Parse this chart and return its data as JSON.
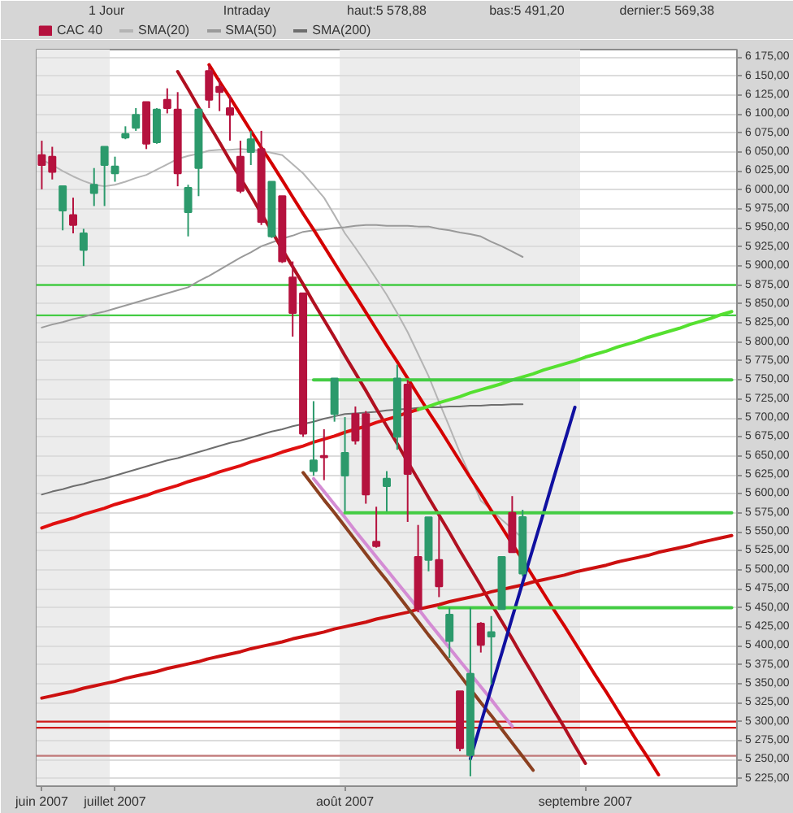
{
  "chart_data": {
    "type": "candlestick",
    "annotations": [
      "1 Jour",
      "Intraday",
      "haut:5 578,88",
      "bas:5 491,20",
      "dernier:5 569,38"
    ],
    "categories": [
      "juin 2007",
      null,
      null,
      null,
      null,
      null,
      null,
      "juillet 2007",
      null,
      null,
      null,
      null,
      null,
      null,
      null,
      null,
      null,
      null,
      null,
      null,
      null,
      null,
      null,
      null,
      null,
      null,
      null,
      null,
      null,
      "août 2007",
      null,
      null,
      null,
      null,
      null,
      null,
      null,
      null,
      null,
      null,
      null,
      null,
      null,
      null,
      null,
      null,
      null,
      null,
      null,
      null,
      null,
      null,
      "septembre 2007",
      null,
      null,
      null,
      null,
      null,
      null,
      null,
      null,
      null,
      null,
      null,
      null,
      null,
      null
    ],
    "ylim": [
      5215,
      6185
    ],
    "yticks": [
      {
        "value": 5225,
        "label": "5 225,00"
      },
      {
        "value": 5250,
        "label": "5 250,00"
      },
      {
        "value": 5275,
        "label": "5 275,00"
      },
      {
        "value": 5300,
        "label": "5 300,00"
      },
      {
        "value": 5325,
        "label": "5 325,00"
      },
      {
        "value": 5350,
        "label": "5 350,00"
      },
      {
        "value": 5375,
        "label": "5 375,00"
      },
      {
        "value": 5400,
        "label": "5 400,00"
      },
      {
        "value": 5425,
        "label": "5 425,00"
      },
      {
        "value": 5450,
        "label": "5 450,00"
      },
      {
        "value": 5475,
        "label": "5 475,00"
      },
      {
        "value": 5500,
        "label": "5 500,00"
      },
      {
        "value": 5525,
        "label": "5 525,00"
      },
      {
        "value": 5550,
        "label": "5 550,00"
      },
      {
        "value": 5575,
        "label": "5 575,00"
      },
      {
        "value": 5600,
        "label": "5 600,00"
      },
      {
        "value": 5625,
        "label": "5 625,00"
      },
      {
        "value": 5650,
        "label": "5 650,00"
      },
      {
        "value": 5675,
        "label": "5 675,00"
      },
      {
        "value": 5700,
        "label": "5 700,00"
      },
      {
        "value": 5725,
        "label": "5 725,00"
      },
      {
        "value": 5750,
        "label": "5 750,00"
      },
      {
        "value": 5775,
        "label": "5 775,00"
      },
      {
        "value": 5800,
        "label": "5 800,00"
      },
      {
        "value": 5825,
        "label": "5 825,00"
      },
      {
        "value": 5850,
        "label": "5 850,00"
      },
      {
        "value": 5875,
        "label": "5 875,00"
      },
      {
        "value": 5900,
        "label": "5 900,00"
      },
      {
        "value": 5925,
        "label": "5 925,00"
      },
      {
        "value": 5950,
        "label": "5 950,00"
      },
      {
        "value": 5975,
        "label": "5 975,00"
      },
      {
        "value": 6000,
        "label": "6 000,00"
      },
      {
        "value": 6025,
        "label": "6 025,00"
      },
      {
        "value": 6050,
        "label": "6 050,00"
      },
      {
        "value": 6075,
        "label": "6 075,00"
      },
      {
        "value": 6100,
        "label": "6 100,00"
      },
      {
        "value": 6125,
        "label": "6 125,00"
      },
      {
        "value": 6150,
        "label": "6 150,00"
      },
      {
        "value": 6175,
        "label": "6 175,00"
      }
    ],
    "grid": "y",
    "legend": "top left",
    "bands": [
      {
        "axis": "x",
        "from": "juin 2007",
        "to": "juillet 2007",
        "color": "#ececec"
      },
      {
        "axis": "x",
        "from": "août 2007",
        "to": "septembre 2007",
        "color": "#ececec"
      }
    ],
    "ref_lines": [
      {
        "axis": "y",
        "value": 5875,
        "color": "#44cc44"
      },
      {
        "axis": "y",
        "value": 5835,
        "color": "#44cc44"
      },
      {
        "axis": "y",
        "value": 5300,
        "color": "#d01818"
      },
      {
        "axis": "y",
        "value": 5292,
        "color": "#d01818"
      },
      {
        "axis": "y",
        "value": 5255,
        "color": "#c07878"
      }
    ],
    "series": [
      {
        "name": "CAC 40",
        "color": "#b5123e",
        "ohlc": [
          [
            6046,
            6065,
            6001,
            6033
          ],
          [
            6044,
            6057,
            6014,
            6024
          ],
          [
            5973,
            6005,
            5947,
            6005
          ],
          [
            5967,
            5990,
            5943,
            5954
          ],
          [
            5921,
            5949,
            5900,
            5943
          ],
          [
            5996,
            6029,
            5979,
            6007
          ],
          [
            6033,
            6057,
            5979,
            6057
          ],
          [
            6022,
            6044,
            6011,
            6031
          ],
          [
            6069,
            6084,
            6067,
            6074
          ],
          [
            6082,
            6108,
            6078,
            6099
          ],
          [
            6116,
            6116,
            6054,
            6061
          ],
          [
            6063,
            6108,
            6061,
            6106
          ],
          [
            6119,
            6134,
            6101,
            6108
          ],
          [
            6106,
            6129,
            6005,
            6022
          ],
          [
            5971,
            6007,
            5939,
            6003
          ],
          [
            6029,
            6108,
            5992,
            6106
          ],
          [
            6157,
            6164,
            6108,
            6119
          ],
          [
            6136,
            6147,
            6104,
            6129
          ],
          [
            6108,
            6125,
            6065,
            6099
          ],
          [
            6044,
            6065,
            5996,
            5999
          ],
          [
            6050,
            6078,
            6033,
            6067
          ],
          [
            6054,
            6078,
            5954,
            5958
          ],
          [
            5939,
            6011,
            5937,
            6011
          ],
          [
            5992,
            5992,
            5904,
            5906
          ],
          [
            5885,
            5906,
            5807,
            5838
          ],
          [
            5864,
            5864,
            5675,
            5679
          ],
          [
            5630,
            5722,
            5624,
            5644
          ],
          [
            5650,
            5685,
            5618,
            5648
          ],
          [
            5705,
            5752,
            5695,
            5752
          ],
          [
            5624,
            5701,
            5577,
            5654
          ],
          [
            5705,
            5715,
            5665,
            5670
          ],
          [
            5705,
            5709,
            5587,
            5599
          ],
          [
            5537,
            5583,
            5529,
            5531
          ],
          [
            5610,
            5630,
            5577,
            5620
          ],
          [
            5675,
            5770,
            5658,
            5752
          ],
          [
            5744,
            5750,
            5563,
            5626
          ],
          [
            5517,
            5559,
            5444,
            5448
          ],
          [
            5513,
            5569,
            5498,
            5569
          ],
          [
            5513,
            5573,
            5464,
            5478
          ],
          [
            5406,
            5450,
            5384,
            5441
          ],
          [
            5340,
            5340,
            5261,
            5265
          ],
          [
            5256,
            5450,
            5228,
            5363
          ],
          [
            5429,
            5431,
            5391,
            5401
          ],
          [
            5412,
            5439,
            5349,
            5418
          ],
          [
            5448,
            5517,
            5448,
            5517
          ],
          [
            5575,
            5597,
            5523,
            5523
          ],
          [
            5495,
            5578.88,
            5491.2,
            5569.38
          ],
          null,
          null,
          null,
          null,
          null,
          null,
          null,
          null,
          null,
          null,
          null,
          null,
          null,
          null,
          null,
          null,
          null,
          null,
          null,
          null
        ],
        "colors": [
          "#b5123e",
          "#b5123e",
          "#2c9a6c",
          "#b5123e",
          "#2c9a6c",
          "#2c9a6c",
          "#2c9a6c",
          "#2c9a6c",
          "#2c9a6c",
          "#2c9a6c",
          "#b5123e",
          "#2c9a6c",
          "#b5123e",
          "#b5123e",
          "#2c9a6c",
          "#2c9a6c",
          "#b5123e",
          "#b5123e",
          "#b5123e",
          "#b5123e",
          "#2c9a6c",
          "#b5123e",
          "#2c9a6c",
          "#b5123e",
          "#b5123e",
          "#b5123e",
          "#2c9a6c",
          "#b5123e",
          "#2c9a6c",
          "#2c9a6c",
          "#b5123e",
          "#b5123e",
          "#b5123e",
          "#2c9a6c",
          "#2c9a6c",
          "#b5123e",
          "#b5123e",
          "#2c9a6c",
          "#b5123e",
          "#2c9a6c",
          "#b5123e",
          "#2c9a6c",
          "#b5123e",
          "#2c9a6c",
          "#2c9a6c",
          "#b5123e",
          "#2c9a6c",
          null,
          null,
          null,
          null,
          null,
          null,
          null,
          null,
          null,
          null,
          null,
          null,
          null,
          null,
          null,
          null,
          null,
          null,
          null,
          null
        ]
      },
      {
        "type": "line",
        "name": "SMA(20)",
        "color": "#b4b4b4",
        "values": [
          6040,
          6033,
          6025,
          6018,
          6012,
          6007,
          6005,
          6007,
          6011,
          6016,
          6020,
          6027,
          6034,
          6041,
          6045,
          6048,
          6052,
          6053,
          6053,
          6054,
          6053,
          6052,
          6049,
          6046,
          6034,
          6022,
          6006,
          5990,
          5967,
          5943,
          5924,
          5904,
          5883,
          5862,
          5838,
          5813,
          5784,
          5755,
          5721,
          5688,
          5654,
          5623,
          5591,
          5579,
          5566,
          5554,
          5541,
          null,
          null,
          null,
          null,
          null,
          null,
          null,
          null,
          null,
          null,
          null,
          null,
          null,
          null,
          null,
          null,
          null,
          null,
          null,
          null
        ]
      },
      {
        "type": "line",
        "name": "SMA(50)",
        "color": "#9a9a9a",
        "values": [
          5819,
          5823,
          5826,
          5830,
          5833,
          5837,
          5840,
          5844,
          5848,
          5852,
          5856,
          5860,
          5864,
          5868,
          5872,
          5880,
          5887,
          5895,
          5903,
          5911,
          5918,
          5926,
          5931,
          5936,
          5940,
          5945,
          5947,
          5948,
          5950,
          5951,
          5953,
          5954,
          5954,
          5953,
          5953,
          5953,
          5952,
          5952,
          5949,
          5947,
          5944,
          5942,
          5939,
          5932,
          5926,
          5919,
          5912,
          null,
          null,
          null,
          null,
          null,
          null,
          null,
          null,
          null,
          null,
          null,
          null,
          null,
          null,
          null,
          null,
          null,
          null,
          null,
          null
        ]
      },
      {
        "type": "line",
        "name": "SMA(200)",
        "color": "#6e6e6e",
        "values": [
          5599,
          5603,
          5606,
          5610,
          5613,
          5617,
          5620,
          5624,
          5628,
          5632,
          5636,
          5640,
          5644,
          5647,
          5651,
          5655,
          5659,
          5663,
          5667,
          5670,
          5674,
          5678,
          5682,
          5685,
          5689,
          5692,
          5695,
          5699,
          5702,
          5705,
          5706,
          5707,
          5708,
          5710,
          5711,
          5712,
          5713,
          5714,
          5714,
          5715,
          5715,
          5716,
          5716,
          5717,
          5717,
          5718,
          5718,
          null,
          null,
          null,
          null,
          null,
          null,
          null,
          null,
          null,
          null,
          null,
          null,
          null,
          null,
          null,
          null,
          null,
          null,
          null,
          null
        ]
      },
      {
        "type": "line",
        "color": "#d40000",
        "values": [
          null,
          null,
          null,
          null,
          null,
          null,
          null,
          null,
          null,
          null,
          null,
          null,
          null,
          null,
          null,
          null,
          6165,
          6143,
          6122,
          6100,
          6078,
          6056,
          6035,
          6013,
          5991,
          5969,
          5948,
          5926,
          5904,
          5882,
          5861,
          5839,
          5817,
          5795,
          5774,
          5752,
          5730,
          5708,
          5687,
          5665,
          5643,
          5621,
          5600,
          5578,
          5556,
          5534,
          5513,
          5491,
          5469,
          5447,
          5426,
          5404,
          5382,
          5360,
          5339,
          5317,
          5295,
          5273,
          5252,
          5230,
          null,
          null,
          null,
          null,
          null,
          null,
          null
        ]
      },
      {
        "type": "line",
        "color": "#b01020",
        "values": [
          null,
          null,
          null,
          null,
          null,
          null,
          null,
          null,
          null,
          null,
          null,
          null,
          null,
          6156,
          6133,
          6109,
          6086,
          6063,
          6039,
          6016,
          5993,
          5969,
          5946,
          5922,
          5899,
          5876,
          5852,
          5829,
          5806,
          5782,
          5759,
          5736,
          5712,
          5689,
          5666,
          5642,
          5619,
          5595,
          5572,
          5549,
          5525,
          5502,
          5479,
          5455,
          5432,
          5409,
          5385,
          5362,
          5338,
          5315,
          5292,
          5268,
          5245,
          null,
          null,
          null,
          null,
          null,
          null,
          null,
          null,
          null,
          null,
          null,
          null,
          null,
          null
        ]
      },
      {
        "type": "line",
        "color": "#e01010",
        "values": [
          5555,
          5560,
          5564,
          5568,
          5573,
          5577,
          5581,
          5586,
          5590,
          5594,
          5598,
          5603,
          5607,
          5611,
          5616,
          5620,
          5624,
          5629,
          5633,
          5637,
          5642,
          5646,
          5650,
          5655,
          5659,
          5663,
          5668,
          5672,
          5676,
          5681,
          5685,
          5689,
          5694,
          5698,
          5702,
          5707,
          5711,
          null,
          null,
          null,
          null,
          null,
          null,
          null,
          null,
          null,
          null,
          null,
          null,
          null,
          null,
          null,
          null,
          null,
          null,
          null,
          null,
          null,
          null,
          null,
          null,
          null,
          null,
          null,
          null,
          null,
          null
        ]
      },
      {
        "type": "line",
        "color": "#55e030",
        "values": [
          null,
          null,
          null,
          null,
          null,
          null,
          null,
          null,
          null,
          null,
          null,
          null,
          null,
          null,
          null,
          null,
          null,
          null,
          null,
          null,
          null,
          null,
          null,
          null,
          null,
          null,
          null,
          null,
          null,
          null,
          null,
          null,
          null,
          null,
          null,
          null,
          5711,
          5715,
          5720,
          5724,
          5728,
          5733,
          5737,
          5741,
          5745,
          5750,
          5754,
          5758,
          5763,
          5767,
          5771,
          5775,
          5780,
          5784,
          5788,
          5793,
          5797,
          5801,
          5806,
          5810,
          5814,
          5818,
          5823,
          5827,
          5831,
          5836,
          5840
        ]
      },
      {
        "type": "line",
        "color": "#cc1010",
        "values": [
          5331,
          5334,
          5337,
          5340,
          5344,
          5347,
          5350,
          5353,
          5357,
          5360,
          5363,
          5366,
          5370,
          5373,
          5376,
          5379,
          5383,
          5386,
          5389,
          5392,
          5396,
          5399,
          5402,
          5405,
          5409,
          5412,
          5415,
          5418,
          5422,
          5425,
          5428,
          5431,
          5435,
          5438,
          5441,
          5444,
          5448,
          5451,
          5454,
          5458,
          5461,
          5464,
          5467,
          5471,
          5474,
          5477,
          5480,
          5484,
          5487,
          5490,
          5493,
          5497,
          5500,
          5503,
          5506,
          5510,
          5513,
          5516,
          5519,
          5523,
          5526,
          5529,
          5532,
          5536,
          5539,
          5542,
          5545
        ]
      },
      {
        "type": "line",
        "color": "#8b4020",
        "values": [
          null,
          null,
          null,
          null,
          null,
          null,
          null,
          null,
          null,
          null,
          null,
          null,
          null,
          null,
          null,
          null,
          null,
          null,
          null,
          null,
          null,
          null,
          null,
          null,
          null,
          5628,
          5610,
          5592,
          5575,
          5557,
          5539,
          5521,
          5503,
          5486,
          5468,
          5450,
          5432,
          5414,
          5397,
          5379,
          5361,
          5343,
          5325,
          5308,
          5290,
          5272,
          5254,
          5236,
          null,
          null,
          null,
          null,
          null,
          null,
          null,
          null,
          null,
          null,
          null,
          null,
          null,
          null,
          null,
          null,
          null,
          null,
          null
        ]
      },
      {
        "type": "line",
        "color": "#d48cd4",
        "values": [
          null,
          null,
          null,
          null,
          null,
          null,
          null,
          null,
          null,
          null,
          null,
          null,
          null,
          null,
          null,
          null,
          null,
          null,
          null,
          null,
          null,
          null,
          null,
          null,
          null,
          null,
          5620,
          5603,
          5586,
          5569,
          5551,
          5534,
          5517,
          5500,
          5483,
          5466,
          5449,
          5431,
          5414,
          5397,
          5380,
          5363,
          5346,
          5329,
          5311,
          5294,
          null,
          null,
          null,
          null,
          null,
          null,
          null,
          null,
          null,
          null,
          null,
          null,
          null,
          null,
          null,
          null,
          null,
          null,
          null,
          null,
          null
        ]
      },
      {
        "type": "line",
        "color": "#1010a0",
        "values": [
          null,
          null,
          null,
          null,
          null,
          null,
          null,
          null,
          null,
          null,
          null,
          null,
          null,
          null,
          null,
          null,
          null,
          null,
          null,
          null,
          null,
          null,
          null,
          null,
          null,
          null,
          null,
          null,
          null,
          null,
          null,
          null,
          null,
          null,
          null,
          null,
          null,
          null,
          null,
          null,
          null,
          5251,
          5298,
          5344,
          5390,
          5437,
          5483,
          5529,
          5575,
          5622,
          5668,
          5714,
          null,
          null,
          null,
          null,
          null,
          null,
          null,
          null,
          null,
          null,
          null,
          null,
          null,
          null,
          null
        ]
      },
      {
        "type": "line",
        "color": "#44cc44",
        "values": [
          null,
          null,
          null,
          null,
          null,
          null,
          null,
          null,
          null,
          null,
          null,
          null,
          null,
          null,
          null,
          null,
          null,
          null,
          null,
          null,
          null,
          null,
          null,
          null,
          null,
          null,
          5750,
          5750,
          5750,
          5750,
          5750,
          5750,
          5750,
          5750,
          5750,
          5750,
          5750,
          5750,
          5750,
          5750,
          5750,
          5750,
          5750,
          5750,
          5750,
          5750,
          5750,
          5750,
          5750,
          5750,
          5750,
          5750,
          5750,
          5750,
          5750,
          5750,
          5750,
          5750,
          5750,
          5750,
          5750,
          5750,
          5750,
          5750,
          5750,
          5750,
          5750
        ]
      },
      {
        "type": "line",
        "color": "#44cc44",
        "values": [
          null,
          null,
          null,
          null,
          null,
          null,
          null,
          null,
          null,
          null,
          null,
          null,
          null,
          null,
          null,
          null,
          null,
          null,
          null,
          null,
          null,
          null,
          null,
          null,
          null,
          null,
          null,
          null,
          null,
          5575,
          5575,
          5575,
          5575,
          5575,
          5575,
          5575,
          5575,
          5575,
          5575,
          5575,
          5575,
          5575,
          5575,
          5575,
          5575,
          5575,
          5575,
          5575,
          5575,
          5575,
          5575,
          5575,
          5575,
          5575,
          5575,
          5575,
          5575,
          5575,
          5575,
          5575,
          5575,
          5575,
          5575,
          5575,
          5575,
          5575,
          5575
        ]
      },
      {
        "type": "line",
        "color": "#44cc44",
        "values": [
          null,
          null,
          null,
          null,
          null,
          null,
          null,
          null,
          null,
          null,
          null,
          null,
          null,
          null,
          null,
          null,
          null,
          null,
          null,
          null,
          null,
          null,
          null,
          null,
          null,
          null,
          null,
          null,
          null,
          null,
          null,
          null,
          null,
          null,
          null,
          null,
          null,
          null,
          5450,
          5450,
          5450,
          5450,
          5450,
          5450,
          5450,
          5450,
          5450,
          5450,
          5450,
          5450,
          5450,
          5450,
          5450,
          5450,
          5450,
          5450,
          5450,
          5450,
          5450,
          5450,
          5450,
          5450,
          5450,
          5450,
          5450,
          5450,
          5450
        ]
      }
    ]
  }
}
